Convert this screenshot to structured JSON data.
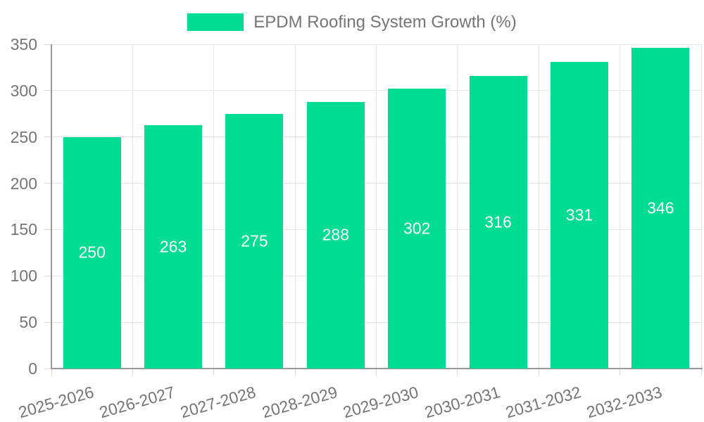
{
  "chart_data": {
    "type": "bar",
    "title": "",
    "legend": "EPDM Roofing System Growth (%)",
    "legend_position": "top",
    "categories": [
      "2025-2026",
      "2026-2027",
      "2027-2028",
      "2028-2029",
      "2029-2030",
      "2030-2031",
      "2031-2032",
      "2032-2033"
    ],
    "values": [
      250,
      263,
      275,
      288,
      302,
      316,
      331,
      346
    ],
    "xlabel": "",
    "ylabel": "",
    "ylim": [
      0,
      350
    ],
    "yticks": [
      0,
      50,
      100,
      150,
      200,
      250,
      300,
      350
    ],
    "grid": true,
    "value_labels": "inside-center",
    "x_label_rotation_deg": -16,
    "colors": {
      "bar": "#00DC92",
      "value_label": "#FFFFFF",
      "axis_text": "#757575",
      "grid_line": "#E6E6E6",
      "axis_line": "#999999",
      "tick": "#D9D9D9",
      "background": "#FFFFFF"
    }
  }
}
